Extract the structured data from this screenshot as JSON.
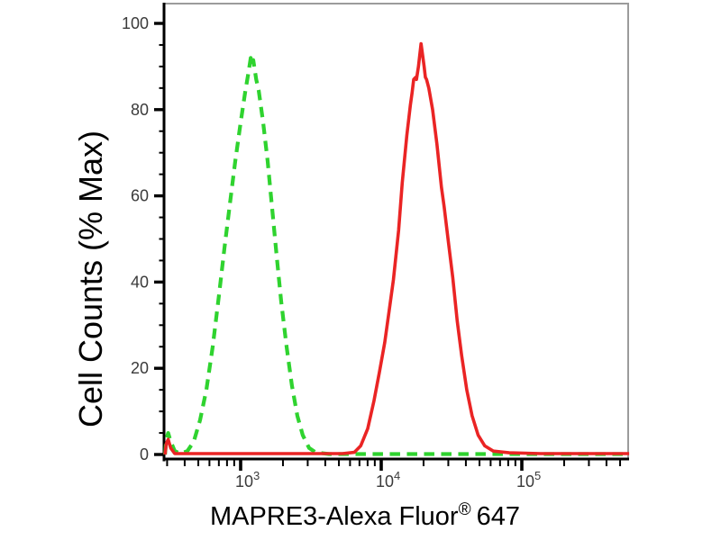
{
  "figure": {
    "background": "#ffffff"
  },
  "chart_data": {
    "type": "line",
    "subtype": "flow-cytometry-histogram-overlay",
    "title": "",
    "xlabel": "MAPRE3-Alexa Fluor® 647",
    "xlabel_parts": {
      "main": "MAPRE3-Alexa Fluor",
      "sup": "®",
      "suffix": "647"
    },
    "ylabel": "Cell Counts (% Max)",
    "xscale": "log",
    "xlim": [
      290,
      580000
    ],
    "ylim": [
      0,
      100
    ],
    "grid": false,
    "legend": "none",
    "x_ticks": [
      {
        "value": 1000,
        "base": "10",
        "exp": "3"
      },
      {
        "value": 10000,
        "base": "10",
        "exp": "4"
      },
      {
        "value": 100000,
        "base": "10",
        "exp": "5"
      }
    ],
    "y_ticks": [
      0,
      20,
      40,
      60,
      80,
      100
    ],
    "y_minor_step": 5,
    "axis_colors": {
      "axis": "#000000",
      "frame": "#9b9b9b",
      "tick_label": "#3a3a3a",
      "title": "#000000"
    },
    "series": [
      {
        "name": "green-dashed-control",
        "color": "#2fd32f",
        "line_style": "dashed",
        "peak_x": 1200,
        "peak_y": 92,
        "points": [
          [
            290,
            0
          ],
          [
            296,
            3.5
          ],
          [
            305,
            5
          ],
          [
            318,
            3
          ],
          [
            340,
            0.8
          ],
          [
            372,
            0.2
          ],
          [
            418,
            0.8
          ],
          [
            464,
            3
          ],
          [
            515,
            8
          ],
          [
            571,
            15
          ],
          [
            633,
            25
          ],
          [
            702,
            37
          ],
          [
            768,
            48
          ],
          [
            838,
            58
          ],
          [
            915,
            68
          ],
          [
            1000,
            77
          ],
          [
            1077,
            84
          ],
          [
            1142,
            89
          ],
          [
            1180,
            92
          ],
          [
            1210,
            90.5
          ],
          [
            1230,
            91.5
          ],
          [
            1290,
            87
          ],
          [
            1343,
            84.5
          ],
          [
            1446,
            77
          ],
          [
            1557,
            68
          ],
          [
            1676,
            57
          ],
          [
            1804,
            46
          ],
          [
            1943,
            35.5
          ],
          [
            2122,
            25
          ],
          [
            2317,
            16
          ],
          [
            2530,
            9
          ],
          [
            2763,
            4.5
          ],
          [
            3071,
            1.5
          ],
          [
            3413,
            0.5
          ],
          [
            4263,
            0.1
          ],
          [
            580000,
            0.1
          ]
        ]
      },
      {
        "name": "red-solid-stained",
        "color": "#ea2424",
        "line_style": "solid",
        "peak_x": 19200,
        "peak_y": 95,
        "points": [
          [
            290,
            0
          ],
          [
            296,
            2.5
          ],
          [
            305,
            3.5
          ],
          [
            318,
            1.5
          ],
          [
            340,
            0.2
          ],
          [
            5300,
            0.2
          ],
          [
            6430,
            0.5
          ],
          [
            7140,
            2
          ],
          [
            8010,
            6
          ],
          [
            8880,
            12.5
          ],
          [
            9700,
            19
          ],
          [
            10600,
            26
          ],
          [
            11400,
            33.5
          ],
          [
            12200,
            40.5
          ],
          [
            13300,
            52
          ],
          [
            14100,
            63
          ],
          [
            15200,
            74
          ],
          [
            16100,
            81
          ],
          [
            16600,
            84
          ],
          [
            17000,
            87
          ],
          [
            17600,
            87.5
          ],
          [
            17800,
            87
          ],
          [
            18400,
            90
          ],
          [
            19200,
            95.3
          ],
          [
            20200,
            90
          ],
          [
            20600,
            87.5
          ],
          [
            21000,
            87
          ],
          [
            21800,
            85
          ],
          [
            23200,
            80
          ],
          [
            24900,
            72
          ],
          [
            26800,
            62
          ],
          [
            28000,
            57.5
          ],
          [
            30100,
            49
          ],
          [
            32300,
            41
          ],
          [
            34700,
            31
          ],
          [
            37300,
            23
          ],
          [
            40600,
            15
          ],
          [
            44300,
            9
          ],
          [
            48900,
            4.5
          ],
          [
            54500,
            2
          ],
          [
            62600,
            0.8
          ],
          [
            81300,
            0.4
          ],
          [
            136000,
            0.2
          ],
          [
            580000,
            0.2
          ]
        ]
      }
    ]
  }
}
